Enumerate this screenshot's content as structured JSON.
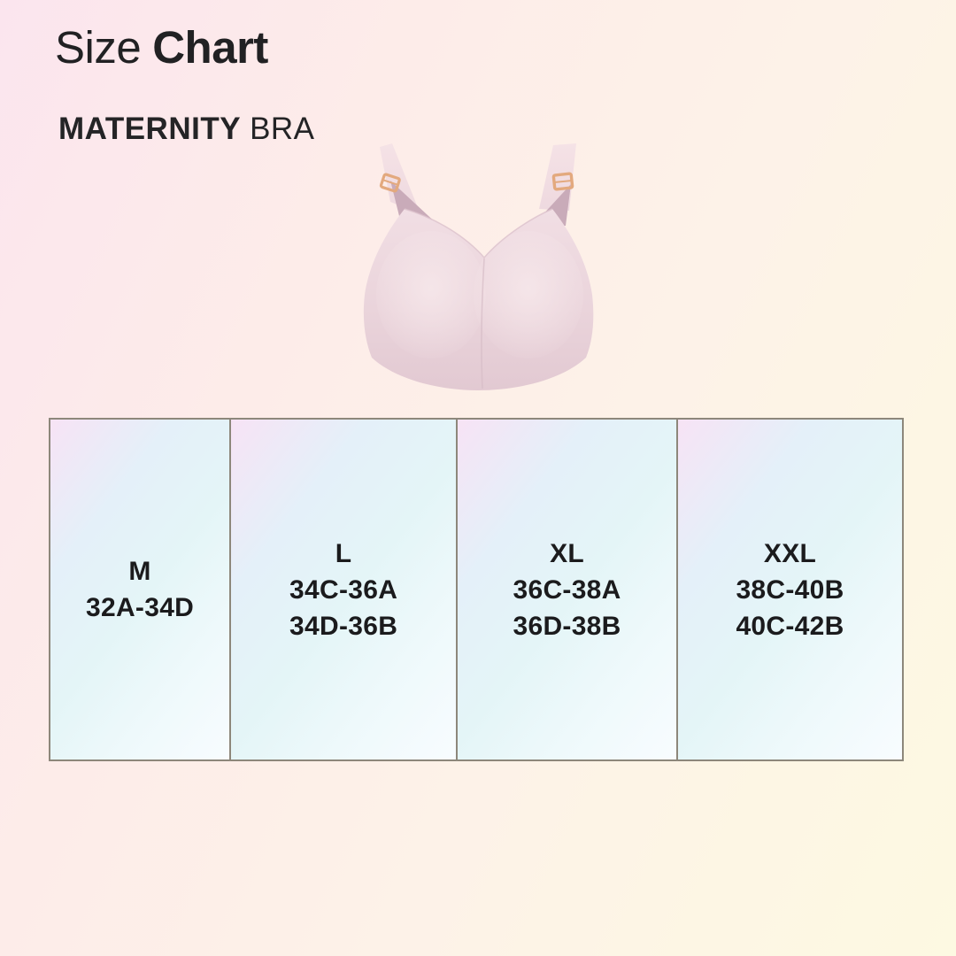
{
  "header": {
    "title_regular": "Size",
    "title_bold": "Chart",
    "subtitle_bold": "MATERNITY",
    "subtitle_regular": "BRA"
  },
  "product_image": {
    "name": "maternity-bra-photo",
    "description": "Pale pink seamless maternity nursing bra with gold clip straps"
  },
  "chart_data": {
    "type": "table",
    "title": "Size Chart",
    "subtitle": "MATERNITY BRA",
    "legend_position": "none",
    "columns": [
      {
        "size": "M",
        "ranges": [
          "32A-34D"
        ]
      },
      {
        "size": "L",
        "ranges": [
          "34C-36A",
          "34D-36B"
        ]
      },
      {
        "size": "XL",
        "ranges": [
          "36C-38A",
          "36D-38B"
        ]
      },
      {
        "size": "XXL",
        "ranges": [
          "38C-40B",
          "40C-42B"
        ]
      }
    ]
  },
  "colors": {
    "background_top_left": "#fbe5ee",
    "background_bottom_right": "#fdf9e2",
    "table_border": "#8d877b",
    "cell_gradient_pink": "#f7e3f5",
    "cell_gradient_cyan": "#e4f0f9",
    "cell_gradient_white": "#f8fcff",
    "text_dark": "#1b1b1d",
    "bra_fabric": "#ecd8de",
    "bra_shadow": "#c9abb9",
    "bra_clip_gold": "#e3a97e"
  }
}
